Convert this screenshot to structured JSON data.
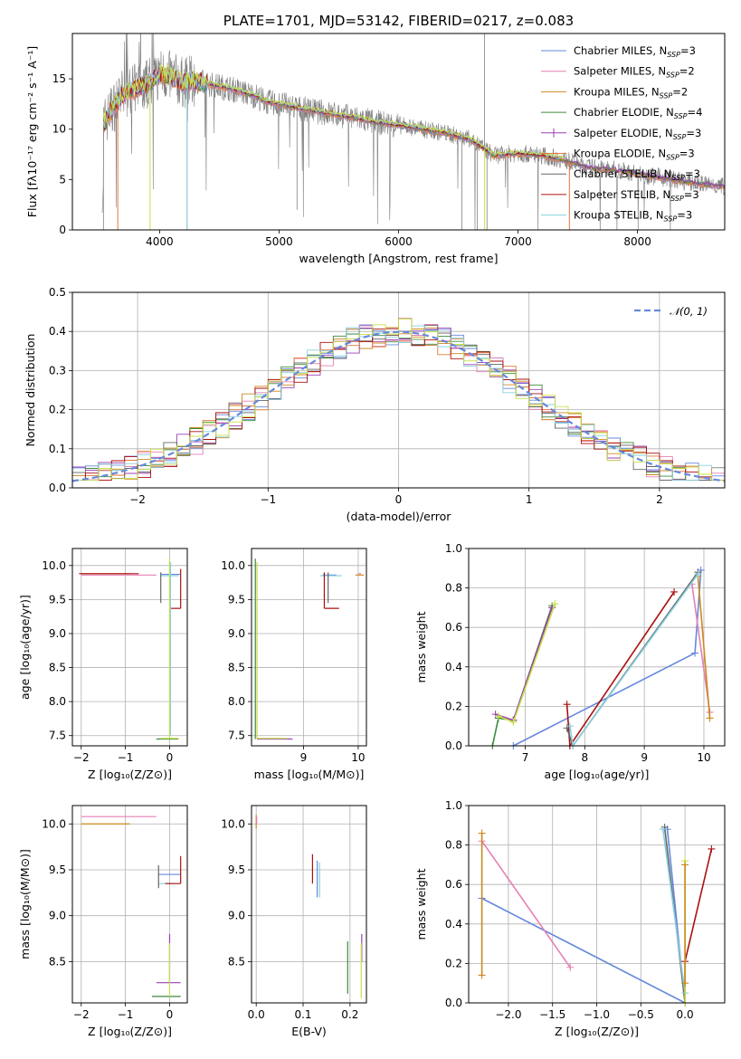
{
  "colors": {
    "chabrier_miles": "#6688dd",
    "salpeter_miles": "#e67fb5",
    "kroupa_miles": "#cc8a1f",
    "chabrier_elodie": "#3c8a3c",
    "salpeter_elodie": "#9a3fb0",
    "kroupa_elodie": "#e07a3a",
    "chabrier_stelib": "#666666",
    "salpeter_stelib": "#aa1111",
    "kroupa_stelib": "#88d0dd",
    "yellowgreen": "#c8e04a",
    "observed": "#808080",
    "grid": "#b0b0b0"
  },
  "chart_data": [
    {
      "id": "spectrum",
      "type": "line",
      "title": "PLATE=1701, MJD=53142, FIBERID=0217, z=0.083",
      "xlabel": "wavelength [Angstrom, rest frame]",
      "ylabel": "Flux [fλ10⁻¹⁷ erg cm⁻² s⁻¹ A⁻¹]",
      "xlim": [
        3270,
        8730
      ],
      "ylim": [
        0,
        19.5
      ],
      "xticks": [
        4000,
        5000,
        6000,
        7000,
        8000
      ],
      "yticks": [
        0,
        5,
        10,
        15
      ],
      "grid": false,
      "legend_position": "top-right",
      "legend": [
        {
          "base": "Chabrier MILES, N",
          "sub": "SSP",
          "tail": "=3",
          "color": "chabrier_miles"
        },
        {
          "base": "Salpeter MILES, N",
          "sub": "SSP",
          "tail": "=2",
          "color": "salpeter_miles"
        },
        {
          "base": "Kroupa MILES, N",
          "sub": "SSP",
          "tail": "=2",
          "color": "kroupa_miles"
        },
        {
          "base": "Chabrier ELODIE, N",
          "sub": "SSP",
          "tail": "=4",
          "color": "chabrier_elodie"
        },
        {
          "base": "Salpeter ELODIE, N",
          "sub": "SSP",
          "tail": "=3",
          "color": "salpeter_elodie"
        },
        {
          "base": "Kroupa ELODIE, N",
          "sub": "SSP",
          "tail": "=3",
          "color": "kroupa_elodie"
        },
        {
          "base": "Chabrier STELIB, N",
          "sub": "SSP",
          "tail": "=3",
          "color": "chabrier_stelib"
        },
        {
          "base": "Salpeter STELIB, N",
          "sub": "SSP",
          "tail": "=3",
          "color": "salpeter_stelib"
        },
        {
          "base": "Kroupa STELIB, N",
          "sub": "SSP",
          "tail": "=3",
          "color": "kroupa_stelib"
        }
      ],
      "continuum": [
        [
          3530,
          10.5
        ],
        [
          3600,
          12
        ],
        [
          3700,
          13.5
        ],
        [
          3800,
          14
        ],
        [
          3900,
          14.5
        ],
        [
          4000,
          15.5
        ],
        [
          4100,
          15.2
        ],
        [
          4200,
          14.6
        ],
        [
          4300,
          14.8
        ],
        [
          4400,
          14.5
        ],
        [
          4600,
          14
        ],
        [
          4800,
          13.3
        ],
        [
          4900,
          12.7
        ],
        [
          5000,
          12.5
        ],
        [
          5200,
          12
        ],
        [
          5400,
          11.6
        ],
        [
          5600,
          11.2
        ],
        [
          5800,
          10.7
        ],
        [
          6000,
          10.4
        ],
        [
          6200,
          10
        ],
        [
          6400,
          9.6
        ],
        [
          6600,
          9
        ],
        [
          6800,
          7.4
        ],
        [
          7000,
          7.6
        ],
        [
          7200,
          7.4
        ],
        [
          7400,
          6.9
        ],
        [
          7600,
          6.2
        ],
        [
          7800,
          6
        ],
        [
          8000,
          5.6
        ],
        [
          8200,
          5.2
        ],
        [
          8400,
          4.8
        ],
        [
          8600,
          4.5
        ],
        [
          8730,
          4.3
        ]
      ]
    },
    {
      "id": "residuals",
      "type": "step",
      "xlabel": "(data-model)/error",
      "ylabel": "Normed distribution",
      "xlim": [
        -2.5,
        2.5
      ],
      "ylim": [
        0,
        0.5
      ],
      "xticks": [
        -2,
        -1,
        0,
        1,
        2
      ],
      "yticks": [
        0,
        0.1,
        0.2,
        0.3,
        0.4,
        0.5
      ],
      "grid": true,
      "legend_position": "top-right",
      "legend": [
        {
          "label": "𝒩(0, 1)",
          "color": "chabrier_miles",
          "style": "dashed"
        }
      ],
      "series_colors": [
        "chabrier_miles",
        "salpeter_miles",
        "kroupa_miles",
        "chabrier_elodie",
        "salpeter_elodie",
        "kroupa_elodie",
        "chabrier_stelib",
        "salpeter_stelib",
        "kroupa_stelib",
        "yellowgreen"
      ]
    },
    {
      "id": "age_vs_Z",
      "type": "scatter",
      "xlabel": "Z [log₁₀(Z/Z⊙)]",
      "ylabel": "age  [log₁₀(age/yr)]",
      "xlim": [
        -2.2,
        0.4
      ],
      "ylim": [
        7.35,
        10.25
      ],
      "xticks": [
        -2,
        -1,
        0
      ],
      "yticks": [
        7.5,
        8.0,
        8.5,
        9.0,
        9.5,
        10.0
      ],
      "grid": true,
      "segments": [
        {
          "c": "kroupa_miles",
          "x1": -2.0,
          "y1": 9.88,
          "x2": -0.9,
          "y2": 9.88
        },
        {
          "c": "salpeter_miles",
          "x1": -2.0,
          "y1": 9.86,
          "x2": -0.3,
          "y2": 9.86
        },
        {
          "c": "salpeter_stelib",
          "x1": -2.05,
          "y1": 9.88,
          "x2": -0.7,
          "y2": 9.88
        },
        {
          "c": "chabrier_miles",
          "x1": -0.2,
          "y1": 9.87,
          "x2": 0.25,
          "y2": 9.87
        },
        {
          "c": "kroupa_stelib",
          "x1": -0.2,
          "y1": 9.85,
          "x2": 0.2,
          "y2": 9.85
        },
        {
          "c": "salpeter_stelib",
          "x1": 0.0,
          "y1": 9.37,
          "x2": 0.25,
          "y2": 9.37
        },
        {
          "c": "salpeter_stelib",
          "x1": 0.25,
          "y1": 9.37,
          "x2": 0.25,
          "y2": 9.95
        },
        {
          "c": "chabrier_stelib",
          "x1": -0.2,
          "y1": 9.45,
          "x2": -0.2,
          "y2": 9.9
        },
        {
          "c": "yellowgreen",
          "x1": 0.0,
          "y1": 7.45,
          "x2": 0.0,
          "y2": 10.1
        },
        {
          "c": "kroupa_stelib",
          "x1": 0.02,
          "y1": 7.5,
          "x2": 0.02,
          "y2": 10.05
        },
        {
          "c": "chabrier_elodie",
          "x1": -0.3,
          "y1": 7.45,
          "x2": 0.2,
          "y2": 7.45
        },
        {
          "c": "yellowgreen",
          "x1": -0.2,
          "y1": 7.46,
          "x2": 0.2,
          "y2": 7.46
        }
      ]
    },
    {
      "id": "age_vs_mass",
      "type": "scatter",
      "xlabel": "mass [log₁₀(M/M⊙)]",
      "ylabel": "",
      "xlim": [
        8.05,
        10.15
      ],
      "ylim": [
        7.35,
        10.25
      ],
      "xticks": [
        9,
        10
      ],
      "yticks": [
        7.5,
        8.0,
        8.5,
        9.0,
        9.5,
        10.0
      ],
      "grid": true,
      "segments": [
        {
          "c": "chabrier_elodie",
          "x1": 8.12,
          "y1": 7.45,
          "x2": 8.12,
          "y2": 10.1
        },
        {
          "c": "yellowgreen",
          "x1": 8.15,
          "y1": 7.45,
          "x2": 8.15,
          "y2": 10.05
        },
        {
          "c": "salpeter_elodie",
          "x1": 8.15,
          "y1": 7.45,
          "x2": 8.8,
          "y2": 7.45
        },
        {
          "c": "yellowgreen",
          "x1": 8.15,
          "y1": 7.46,
          "x2": 8.7,
          "y2": 7.46
        },
        {
          "c": "chabrier_miles",
          "x1": 9.35,
          "y1": 9.86,
          "x2": 9.6,
          "y2": 9.86
        },
        {
          "c": "kroupa_stelib",
          "x1": 9.3,
          "y1": 9.85,
          "x2": 9.7,
          "y2": 9.85
        },
        {
          "c": "salpeter_stelib",
          "x1": 9.38,
          "y1": 9.37,
          "x2": 9.65,
          "y2": 9.37
        },
        {
          "c": "salpeter_stelib",
          "x1": 9.38,
          "y1": 9.37,
          "x2": 9.38,
          "y2": 9.9
        },
        {
          "c": "chabrier_stelib",
          "x1": 9.45,
          "y1": 9.45,
          "x2": 9.45,
          "y2": 9.9
        },
        {
          "c": "kroupa_miles",
          "x1": 9.95,
          "y1": 9.86,
          "x2": 10.1,
          "y2": 9.86
        },
        {
          "c": "salpeter_miles",
          "x1": 10.0,
          "y1": 9.88,
          "x2": 10.05,
          "y2": 9.88
        }
      ]
    },
    {
      "id": "massweight_vs_age",
      "type": "line",
      "xlabel": "age  [log₁₀(age/yr)]",
      "ylabel": "mass weight",
      "xlim": [
        6.05,
        10.35
      ],
      "ylim": [
        0,
        1.0
      ],
      "xticks": [
        7,
        8,
        9,
        10
      ],
      "yticks": [
        0.0,
        0.2,
        0.4,
        0.6,
        0.8,
        1.0
      ],
      "grid": true,
      "series": [
        {
          "c": "chabrier_miles",
          "points": [
            [
              6.8,
              0.0
            ],
            [
              9.85,
              0.47
            ],
            [
              9.95,
              0.89
            ]
          ]
        },
        {
          "c": "salpeter_miles",
          "points": [
            [
              9.8,
              0.82
            ],
            [
              10.1,
              0.17
            ]
          ]
        },
        {
          "c": "kroupa_miles",
          "points": [
            [
              9.9,
              0.86
            ],
            [
              10.1,
              0.14
            ]
          ]
        },
        {
          "c": "chabrier_elodie",
          "points": [
            [
              6.45,
              0.0
            ],
            [
              6.55,
              0.14
            ],
            [
              6.8,
              0.13
            ],
            [
              7.45,
              0.71
            ]
          ]
        },
        {
          "c": "salpeter_elodie",
          "points": [
            [
              6.5,
              0.16
            ],
            [
              6.8,
              0.13
            ],
            [
              7.45,
              0.7
            ]
          ]
        },
        {
          "c": "yellowgreen",
          "points": [
            [
              6.55,
              0.15
            ],
            [
              6.8,
              0.12
            ],
            [
              7.5,
              0.72
            ]
          ]
        },
        {
          "c": "salpeter_stelib",
          "points": [
            [
              7.7,
              0.21
            ],
            [
              7.75,
              0.0
            ],
            [
              9.5,
              0.78
            ]
          ]
        },
        {
          "c": "chabrier_stelib",
          "points": [
            [
              7.7,
              0.09
            ],
            [
              7.8,
              0.0
            ],
            [
              9.9,
              0.88
            ]
          ]
        },
        {
          "c": "kroupa_stelib",
          "points": [
            [
              7.75,
              0.1
            ],
            [
              7.8,
              0.0
            ],
            [
              9.9,
              0.87
            ]
          ]
        }
      ]
    },
    {
      "id": "mass_vs_Z",
      "type": "scatter",
      "xlabel": "Z [log₁₀(Z/Z⊙)]",
      "ylabel": "mass [log₁₀(M/M⊙)]",
      "xlim": [
        -2.2,
        0.4
      ],
      "ylim": [
        8.05,
        10.2
      ],
      "xticks": [
        -2,
        -1,
        0
      ],
      "yticks": [
        8.5,
        9.0,
        9.5,
        10.0
      ],
      "grid": true,
      "segments": [
        {
          "c": "salpeter_miles",
          "x1": -2.0,
          "y1": 10.08,
          "x2": -0.3,
          "y2": 10.08
        },
        {
          "c": "kroupa_miles",
          "x1": -2.0,
          "y1": 10.0,
          "x2": -0.9,
          "y2": 10.0
        },
        {
          "c": "chabrier_miles",
          "x1": -0.25,
          "y1": 9.45,
          "x2": 0.25,
          "y2": 9.45
        },
        {
          "c": "kroupa_stelib",
          "x1": -0.25,
          "y1": 9.35,
          "x2": 0.1,
          "y2": 9.35
        },
        {
          "c": "salpeter_stelib",
          "x1": -0.1,
          "y1": 9.35,
          "x2": 0.25,
          "y2": 9.35
        },
        {
          "c": "salpeter_stelib",
          "x1": 0.25,
          "y1": 9.35,
          "x2": 0.25,
          "y2": 9.65
        },
        {
          "c": "chabrier_stelib",
          "x1": -0.25,
          "y1": 9.3,
          "x2": -0.25,
          "y2": 9.55
        },
        {
          "c": "salpeter_elodie",
          "x1": -0.3,
          "y1": 8.27,
          "x2": 0.25,
          "y2": 8.27
        },
        {
          "c": "salpeter_elodie",
          "x1": 0.0,
          "y1": 8.27,
          "x2": 0.0,
          "y2": 8.8
        },
        {
          "c": "chabrier_elodie",
          "x1": -0.4,
          "y1": 8.12,
          "x2": 0.25,
          "y2": 8.12
        },
        {
          "c": "yellowgreen",
          "x1": 0.0,
          "y1": 8.12,
          "x2": 0.0,
          "y2": 8.7
        }
      ]
    },
    {
      "id": "mass_vs_EBV",
      "type": "scatter",
      "xlabel": "E(B-V)",
      "ylabel": "",
      "xlim": [
        -0.01,
        0.235
      ],
      "ylim": [
        8.05,
        10.2
      ],
      "xticks": [
        0.0,
        0.1,
        0.2
      ],
      "yticks": [
        8.5,
        9.0,
        9.5,
        10.0
      ],
      "grid": true,
      "segments": [
        {
          "c": "kroupa_miles",
          "x1": 0.0,
          "y1": 9.95,
          "x2": 0.0,
          "y2": 10.1
        },
        {
          "c": "salpeter_miles",
          "x1": 0.001,
          "y1": 10.0,
          "x2": 0.001,
          "y2": 10.08
        },
        {
          "c": "salpeter_stelib",
          "x1": 0.12,
          "y1": 9.35,
          "x2": 0.12,
          "y2": 9.67
        },
        {
          "c": "chabrier_miles",
          "x1": 0.13,
          "y1": 9.2,
          "x2": 0.13,
          "y2": 9.6
        },
        {
          "c": "kroupa_stelib",
          "x1": 0.135,
          "y1": 9.2,
          "x2": 0.135,
          "y2": 9.58
        },
        {
          "c": "chabrier_elodie",
          "x1": 0.195,
          "y1": 8.15,
          "x2": 0.195,
          "y2": 8.72
        },
        {
          "c": "salpeter_elodie",
          "x1": 0.225,
          "y1": 8.5,
          "x2": 0.225,
          "y2": 8.8
        },
        {
          "c": "yellowgreen",
          "x1": 0.224,
          "y1": 8.1,
          "x2": 0.224,
          "y2": 8.7
        }
      ]
    },
    {
      "id": "massweight_vs_Z",
      "type": "line",
      "xlabel": "Z [log₁₀(Z/Z⊙)]",
      "ylabel": "mass weight",
      "xlim": [
        -2.45,
        0.45
      ],
      "ylim": [
        0,
        1.0
      ],
      "xticks": [
        -2.0,
        -1.5,
        -1.0,
        -0.5,
        0.0
      ],
      "yticks": [
        0.0,
        0.2,
        0.4,
        0.6,
        0.8,
        1.0
      ],
      "grid": true,
      "series": [
        {
          "c": "chabrier_miles",
          "points": [
            [
              -2.3,
              0.53
            ],
            [
              0.0,
              0.0
            ],
            [
              -0.2,
              0.88
            ]
          ]
        },
        {
          "c": "salpeter_miles",
          "points": [
            [
              -2.3,
              0.82
            ],
            [
              -1.3,
              0.18
            ]
          ]
        },
        {
          "c": "kroupa_miles",
          "points": [
            [
              -2.3,
              0.86
            ],
            [
              -2.3,
              0.14
            ]
          ]
        },
        {
          "c": "chabrier_stelib",
          "points": [
            [
              -0.23,
              0.89
            ],
            [
              0.0,
              0.0
            ]
          ]
        },
        {
          "c": "kroupa_stelib",
          "points": [
            [
              -0.25,
              0.88
            ],
            [
              0.0,
              0.05
            ]
          ]
        },
        {
          "c": "salpeter_stelib",
          "points": [
            [
              0.0,
              0.0
            ],
            [
              0.0,
              0.21
            ],
            [
              0.3,
              0.78
            ]
          ]
        },
        {
          "c": "yellowgreen",
          "points": [
            [
              0.0,
              0.72
            ],
            [
              0.0,
              0.0
            ]
          ]
        },
        {
          "c": "kroupa_miles",
          "points": [
            [
              0.0,
              0.7
            ],
            [
              0.0,
              0.1
            ]
          ]
        }
      ]
    }
  ]
}
